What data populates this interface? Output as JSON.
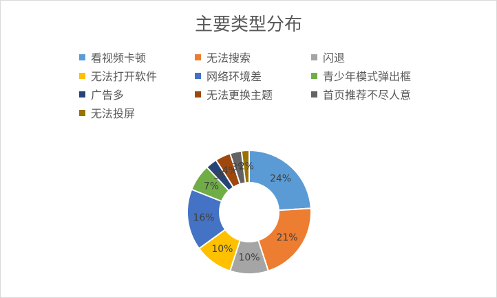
{
  "chart_data": {
    "type": "pie",
    "title": "主要类型分布",
    "categories": [
      "看视频卡顿",
      "无法搜索",
      "闪退",
      "无法打开软件",
      "网络环境差",
      "青少年模式弹出框",
      "广告多",
      "无法更换主题",
      "首页推荐不尽人意",
      "无法投屏"
    ],
    "values": [
      24,
      21,
      10,
      10,
      16,
      7,
      3,
      4,
      3,
      2
    ],
    "labels": [
      "24%",
      "21%",
      "10%",
      "10%",
      "16%",
      "7%",
      "3%",
      "4%",
      "3%",
      "2%"
    ],
    "colors": [
      "#5b9bd5",
      "#ed7d31",
      "#a5a5a5",
      "#ffc000",
      "#4472c4",
      "#70ad47",
      "#264478",
      "#9e480e",
      "#636363",
      "#997300"
    ],
    "legend_position": "top",
    "donut": true
  }
}
